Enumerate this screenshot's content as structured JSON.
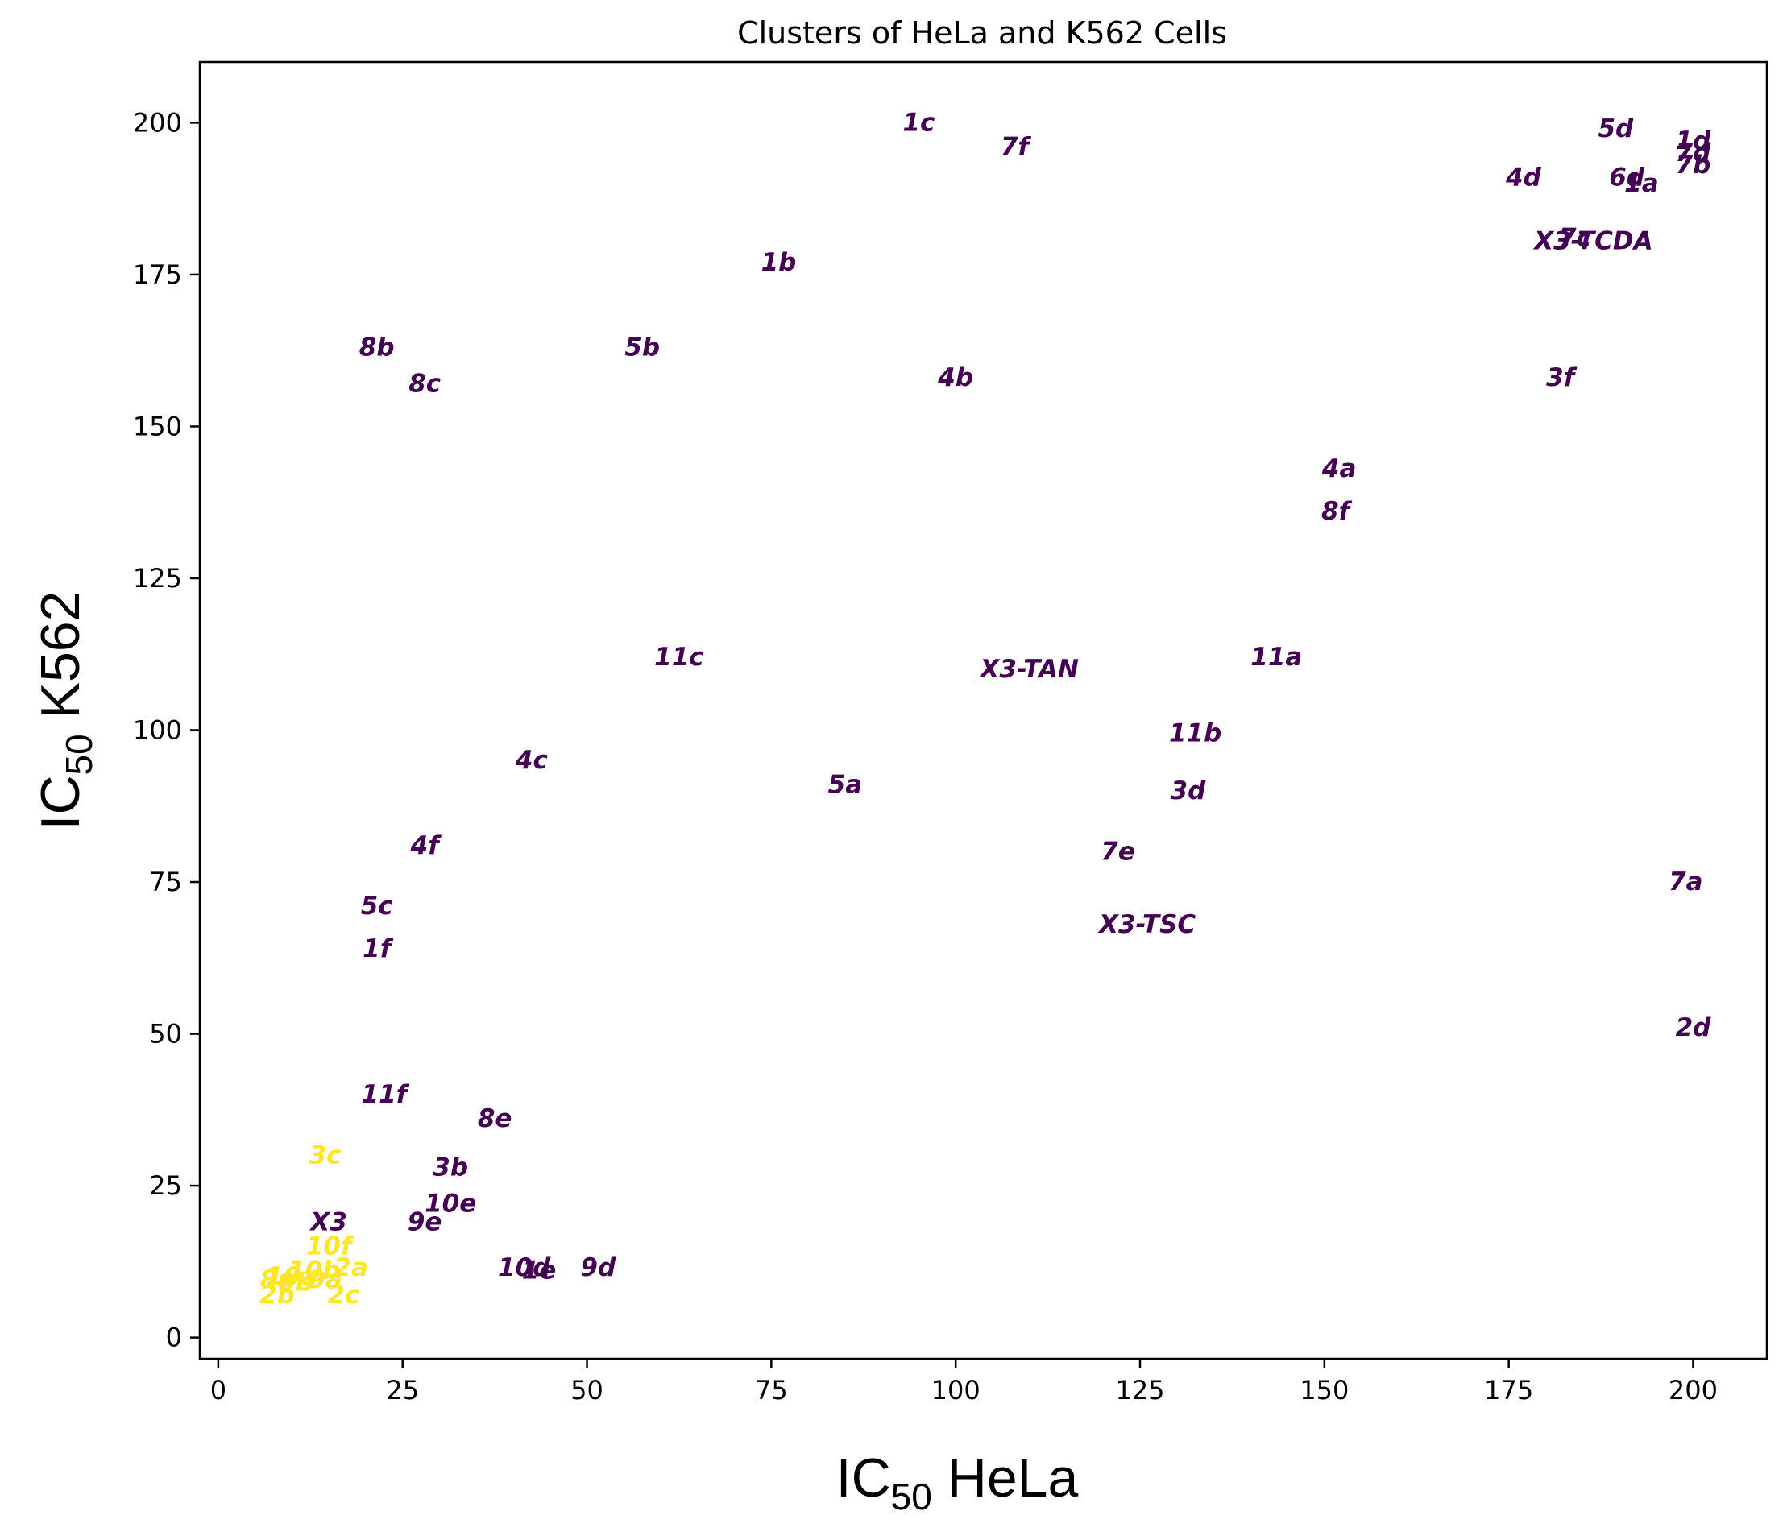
{
  "chart_data": {
    "type": "scatter",
    "title": "Clusters of HeLa and K562 Cells",
    "xlabel": {
      "main": "IC",
      "sub": "50",
      "rest": " HeLa"
    },
    "ylabel": {
      "main": "IC",
      "sub": "50",
      "rest": " K562"
    },
    "xlim": [
      -2.5,
      210
    ],
    "ylim": [
      -3.5,
      210
    ],
    "xticks": [
      0,
      25,
      50,
      75,
      100,
      125,
      150,
      175,
      200
    ],
    "yticks": [
      0,
      25,
      50,
      75,
      100,
      125,
      150,
      175,
      200
    ],
    "colors": {
      "cluster_0": "#440154",
      "cluster_1": "#fde725"
    },
    "points": [
      {
        "label": "1c",
        "x": 95,
        "y": 200,
        "cluster": 0
      },
      {
        "label": "7f",
        "x": 108,
        "y": 196,
        "cluster": 0
      },
      {
        "label": "5d",
        "x": 189.5,
        "y": 199,
        "cluster": 0
      },
      {
        "label": "1d",
        "x": 200,
        "y": 197,
        "cluster": 0
      },
      {
        "label": "7d",
        "x": 200,
        "y": 195,
        "cluster": 0
      },
      {
        "label": "7b",
        "x": 200,
        "y": 193,
        "cluster": 0
      },
      {
        "label": "4d",
        "x": 177,
        "y": 191,
        "cluster": 0
      },
      {
        "label": "6d",
        "x": 191,
        "y": 191,
        "cluster": 0
      },
      {
        "label": "1a",
        "x": 193,
        "y": 190,
        "cluster": 0
      },
      {
        "label": "X3-TCDA",
        "x": 186.5,
        "y": 180.5,
        "cluster": 0
      },
      {
        "label": "7c",
        "x": 184,
        "y": 181,
        "cluster": 0
      },
      {
        "label": "1b",
        "x": 76,
        "y": 177,
        "cluster": 0
      },
      {
        "label": "8b",
        "x": 21.5,
        "y": 163,
        "cluster": 0
      },
      {
        "label": "5b",
        "x": 57.5,
        "y": 163,
        "cluster": 0
      },
      {
        "label": "8c",
        "x": 28,
        "y": 157,
        "cluster": 0
      },
      {
        "label": "4b",
        "x": 100,
        "y": 158,
        "cluster": 0
      },
      {
        "label": "3f",
        "x": 182,
        "y": 158,
        "cluster": 0
      },
      {
        "label": "4a",
        "x": 152,
        "y": 143,
        "cluster": 0
      },
      {
        "label": "8f",
        "x": 151.5,
        "y": 136,
        "cluster": 0
      },
      {
        "label": "11c",
        "x": 62.5,
        "y": 112,
        "cluster": 0
      },
      {
        "label": "X3-TAN",
        "x": 110,
        "y": 110,
        "cluster": 0
      },
      {
        "label": "11a",
        "x": 143.5,
        "y": 112,
        "cluster": 0
      },
      {
        "label": "11b",
        "x": 132.5,
        "y": 99.5,
        "cluster": 0
      },
      {
        "label": "4c",
        "x": 42.5,
        "y": 95,
        "cluster": 0
      },
      {
        "label": "5a",
        "x": 85,
        "y": 91,
        "cluster": 0
      },
      {
        "label": "3d",
        "x": 131.5,
        "y": 90,
        "cluster": 0
      },
      {
        "label": "4f",
        "x": 28,
        "y": 81,
        "cluster": 0
      },
      {
        "label": "7e",
        "x": 122,
        "y": 80,
        "cluster": 0
      },
      {
        "label": "7a",
        "x": 199,
        "y": 75,
        "cluster": 0
      },
      {
        "label": "5c",
        "x": 21.5,
        "y": 71,
        "cluster": 0
      },
      {
        "label": "X3-TSC",
        "x": 126,
        "y": 68,
        "cluster": 0
      },
      {
        "label": "1f",
        "x": 21.5,
        "y": 64,
        "cluster": 0
      },
      {
        "label": "2d",
        "x": 200,
        "y": 51,
        "cluster": 0
      },
      {
        "label": "11f",
        "x": 22.5,
        "y": 40,
        "cluster": 0
      },
      {
        "label": "8e",
        "x": 37.5,
        "y": 36,
        "cluster": 0
      },
      {
        "label": "3b",
        "x": 31.5,
        "y": 28,
        "cluster": 0
      },
      {
        "label": "10e",
        "x": 31.5,
        "y": 22,
        "cluster": 0
      },
      {
        "label": "9e",
        "x": 28,
        "y": 19,
        "cluster": 0
      },
      {
        "label": "X3",
        "x": 15,
        "y": 19,
        "cluster": 0
      },
      {
        "label": "10d",
        "x": 41.5,
        "y": 11.5,
        "cluster": 0
      },
      {
        "label": "1e",
        "x": 43.5,
        "y": 11,
        "cluster": 0
      },
      {
        "label": "9d",
        "x": 51.5,
        "y": 11.5,
        "cluster": 0
      },
      {
        "label": "3c",
        "x": 14.5,
        "y": 30,
        "cluster": 1
      },
      {
        "label": "10f",
        "x": 15,
        "y": 15,
        "cluster": 1
      },
      {
        "label": "2a",
        "x": 18,
        "y": 11.5,
        "cluster": 1
      },
      {
        "label": "10b",
        "x": 13,
        "y": 11,
        "cluster": 1
      },
      {
        "label": "10a",
        "x": 10,
        "y": 10,
        "cluster": 1
      },
      {
        "label": "9a",
        "x": 14.5,
        "y": 9.5,
        "cluster": 1
      },
      {
        "label": "8a",
        "x": 8,
        "y": 9.5,
        "cluster": 1
      },
      {
        "label": "9b",
        "x": 10.5,
        "y": 9,
        "cluster": 1
      },
      {
        "label": "2b",
        "x": 8,
        "y": 7,
        "cluster": 1
      },
      {
        "label": "2c",
        "x": 17,
        "y": 7,
        "cluster": 1
      }
    ]
  }
}
